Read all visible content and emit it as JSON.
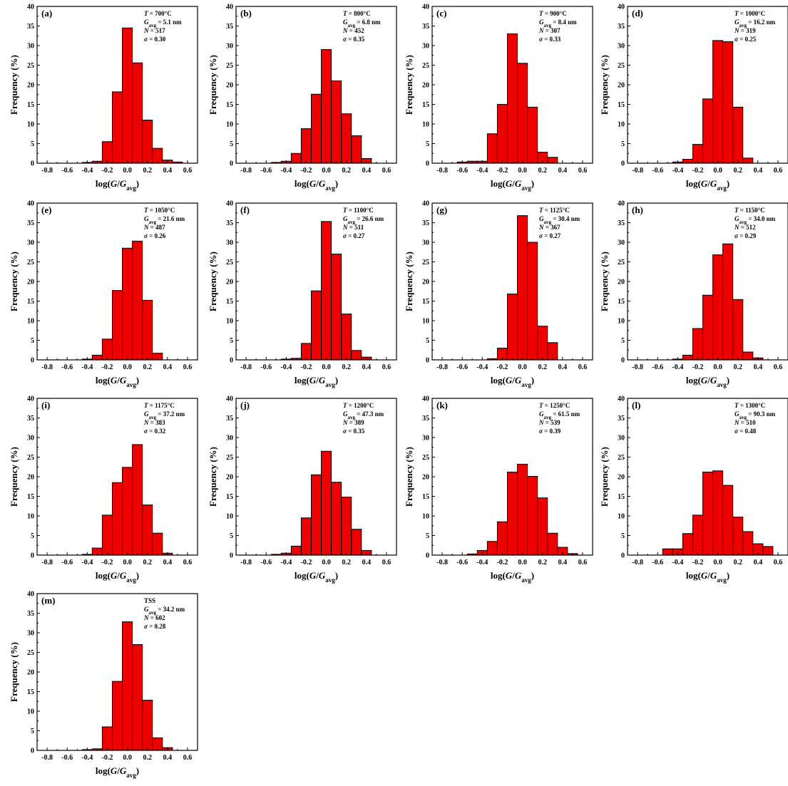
{
  "colors": {
    "bar_fill": "#ee0000",
    "bar_stroke": "#000000",
    "axis": "#000000",
    "background": "#ffffff"
  },
  "chart_data": [
    {
      "type": "bar",
      "panel": "(a)",
      "info": [
        "T = 700°C",
        "G_avg = 5.1 nm",
        "N = 517",
        "σ = 0.30"
      ],
      "xlabel": "log(G/G_avg)",
      "ylabel": "Frequency (%)",
      "xlim": [
        -0.9,
        0.7
      ],
      "ylim": [
        0,
        40
      ],
      "xticks": [
        "-0.8",
        "-0.6",
        "-0.4",
        "-0.2",
        "0.0",
        "0.2",
        "0.4",
        "0.6"
      ],
      "yticks": [
        "0",
        "5",
        "10",
        "15",
        "20",
        "25",
        "30",
        "35",
        "40"
      ],
      "bin_left": [
        -0.45,
        -0.35,
        -0.25,
        -0.15,
        -0.05,
        0.05,
        0.15,
        0.25,
        0.35,
        0.45
      ],
      "bin_width": 0.1,
      "values": [
        0.2,
        0.5,
        5.5,
        18.2,
        34.5,
        25.6,
        11.0,
        3.8,
        0.8,
        0.3
      ]
    },
    {
      "type": "bar",
      "panel": "(b)",
      "info": [
        "T = 800°C",
        "G_avg = 6.8 nm",
        "N = 452",
        "σ = 0.35"
      ],
      "xlabel": "log(G/G_avg)",
      "ylabel": "Frequency (%)",
      "xlim": [
        -0.9,
        0.7
      ],
      "ylim": [
        0,
        40
      ],
      "xticks": [
        "-0.8",
        "-0.6",
        "-0.4",
        "-0.2",
        "0.0",
        "0.2",
        "0.4",
        "0.6"
      ],
      "yticks": [
        "0",
        "5",
        "10",
        "15",
        "20",
        "25",
        "30",
        "35",
        "40"
      ],
      "bin_left": [
        -0.55,
        -0.45,
        -0.35,
        -0.25,
        -0.15,
        -0.05,
        0.05,
        0.15,
        0.25,
        0.35
      ],
      "bin_width": 0.1,
      "values": [
        0.2,
        0.5,
        2.5,
        8.8,
        17.6,
        29.0,
        21.0,
        12.6,
        7.0,
        1.2
      ]
    },
    {
      "type": "bar",
      "panel": "(c)",
      "info": [
        "T = 900°C",
        "G_avg = 8.4 nm",
        "N = 307",
        "σ = 0.33"
      ],
      "xlabel": "log(G/G_avg)",
      "ylabel": "Frequency (%)",
      "xlim": [
        -0.9,
        0.7
      ],
      "ylim": [
        0,
        40
      ],
      "xticks": [
        "-0.8",
        "-0.6",
        "-0.4",
        "-0.2",
        "0.0",
        "0.2",
        "0.4",
        "0.6"
      ],
      "yticks": [
        "0",
        "5",
        "10",
        "15",
        "20",
        "25",
        "30",
        "35",
        "40"
      ],
      "bin_left": [
        -0.65,
        -0.55,
        -0.45,
        -0.35,
        -0.25,
        -0.15,
        -0.05,
        0.05,
        0.15,
        0.25
      ],
      "bin_width": 0.1,
      "values": [
        0.3,
        0.5,
        0.5,
        7.5,
        15.0,
        33.0,
        25.5,
        14.3,
        2.8,
        1.5
      ]
    },
    {
      "type": "bar",
      "panel": "(d)",
      "info": [
        "T = 1000°C",
        "G_avg = 16.2 nm",
        "N = 319",
        "σ = 0.25"
      ],
      "xlabel": "log(G/G_avg)",
      "ylabel": "Frequency (%)",
      "xlim": [
        -0.9,
        0.7
      ],
      "ylim": [
        0,
        40
      ],
      "xticks": [
        "-0.8",
        "-0.6",
        "-0.4",
        "-0.2",
        "0.0",
        "0.2",
        "0.4",
        "0.6"
      ],
      "yticks": [
        "0",
        "5",
        "10",
        "15",
        "20",
        "25",
        "30",
        "35",
        "40"
      ],
      "bin_left": [
        -0.45,
        -0.35,
        -0.25,
        -0.15,
        -0.05,
        0.05,
        0.15,
        0.25
      ],
      "bin_width": 0.1,
      "values": [
        0.3,
        1.0,
        4.8,
        16.4,
        31.3,
        31.0,
        14.3,
        1.3
      ]
    },
    {
      "type": "bar",
      "panel": "(e)",
      "info": [
        "T = 1050°C",
        "G_avg = 21.6 nm",
        "N = 487",
        "σ = 0.26"
      ],
      "xlabel": "log(G/G_avg)",
      "ylabel": "Frequency (%)",
      "xlim": [
        -0.9,
        0.7
      ],
      "ylim": [
        0,
        40
      ],
      "xticks": [
        "-0.8",
        "-0.6",
        "-0.4",
        "-0.2",
        "0.0",
        "0.2",
        "0.4",
        "0.6"
      ],
      "yticks": [
        "0",
        "5",
        "10",
        "15",
        "20",
        "25",
        "30",
        "35",
        "40"
      ],
      "bin_left": [
        -0.45,
        -0.35,
        -0.25,
        -0.15,
        -0.05,
        0.05,
        0.15,
        0.25
      ],
      "bin_width": 0.1,
      "values": [
        0.2,
        1.2,
        5.3,
        17.7,
        28.5,
        30.3,
        15.2,
        1.7
      ]
    },
    {
      "type": "bar",
      "panel": "(f)",
      "info": [
        "T = 1100°C",
        "G_avg = 26.6 nm",
        "N = 511",
        "σ = 0.27"
      ],
      "xlabel": "log(G/G_avg)",
      "ylabel": "Frequency (%)",
      "xlim": [
        -0.9,
        0.7
      ],
      "ylim": [
        0,
        40
      ],
      "xticks": [
        "-0.8",
        "-0.6",
        "-0.4",
        "-0.2",
        "0.0",
        "0.2",
        "0.4",
        "0.6"
      ],
      "yticks": [
        "0",
        "5",
        "10",
        "15",
        "20",
        "25",
        "30",
        "35",
        "40"
      ],
      "bin_left": [
        -0.45,
        -0.35,
        -0.25,
        -0.15,
        -0.05,
        0.05,
        0.15,
        0.25,
        0.35
      ],
      "bin_width": 0.1,
      "values": [
        0.2,
        0.4,
        4.2,
        17.6,
        35.3,
        27.0,
        11.7,
        2.4,
        0.7
      ]
    },
    {
      "type": "bar",
      "panel": "(g)",
      "info": [
        "T = 1125°C",
        "G_avg = 30.4 nm",
        "N = 367",
        "σ = 0.27"
      ],
      "xlabel": "log(G/G_avg)",
      "ylabel": "Frequency (%)",
      "xlim": [
        -0.9,
        0.7
      ],
      "ylim": [
        0,
        40
      ],
      "xticks": [
        "-0.8",
        "-0.6",
        "-0.4",
        "-0.2",
        "0.0",
        "0.2",
        "0.4",
        "0.6"
      ],
      "yticks": [
        "0",
        "5",
        "10",
        "15",
        "20",
        "25",
        "30",
        "35",
        "40"
      ],
      "bin_left": [
        -0.35,
        -0.25,
        -0.15,
        -0.05,
        0.05,
        0.15,
        0.25
      ],
      "bin_width": 0.1,
      "values": [
        0.3,
        3.0,
        16.8,
        36.8,
        30.0,
        8.6,
        4.4
      ]
    },
    {
      "type": "bar",
      "panel": "(h)",
      "info": [
        "T = 1150°C",
        "G_avg = 34.0 nm",
        "N = 512",
        "σ = 0.29"
      ],
      "xlabel": "log(G/G_avg)",
      "ylabel": "Frequency (%)",
      "xlim": [
        -0.9,
        0.7
      ],
      "ylim": [
        0,
        40
      ],
      "xticks": [
        "-0.8",
        "-0.6",
        "-0.4",
        "-0.2",
        "0.0",
        "0.2",
        "0.4",
        "0.6"
      ],
      "yticks": [
        "0",
        "5",
        "10",
        "15",
        "20",
        "25",
        "30",
        "35",
        "40"
      ],
      "bin_left": [
        -0.45,
        -0.35,
        -0.25,
        -0.15,
        -0.05,
        0.05,
        0.15,
        0.25,
        0.35
      ],
      "bin_width": 0.1,
      "values": [
        0.2,
        1.2,
        8.0,
        16.5,
        26.8,
        29.6,
        15.4,
        2.0,
        0.5
      ]
    },
    {
      "type": "bar",
      "panel": "(i)",
      "info": [
        "T = 1175°C",
        "G_avg = 37.2 nm",
        "N = 383",
        "σ = 0.32"
      ],
      "xlabel": "log(G/G_avg)",
      "ylabel": "Frequency (%)",
      "xlim": [
        -0.9,
        0.7
      ],
      "ylim": [
        0,
        40
      ],
      "xticks": [
        "-0.8",
        "-0.6",
        "-0.4",
        "-0.2",
        "0.0",
        "0.2",
        "0.4",
        "0.6"
      ],
      "yticks": [
        "0",
        "5",
        "10",
        "15",
        "20",
        "25",
        "30",
        "35",
        "40"
      ],
      "bin_left": [
        -0.45,
        -0.35,
        -0.25,
        -0.15,
        -0.05,
        0.05,
        0.15,
        0.25,
        0.35
      ],
      "bin_width": 0.1,
      "values": [
        0.2,
        1.8,
        10.2,
        18.5,
        22.4,
        28.2,
        12.8,
        5.6,
        0.5
      ]
    },
    {
      "type": "bar",
      "panel": "(j)",
      "info": [
        "T = 1200°C",
        "G_avg = 47.3 nm",
        "N = 389",
        "σ = 0.35"
      ],
      "xlabel": "log(G/G_avg)",
      "ylabel": "Frequency (%)",
      "xlim": [
        -0.9,
        0.7
      ],
      "ylim": [
        0,
        40
      ],
      "xticks": [
        "-0.8",
        "-0.6",
        "-0.4",
        "-0.2",
        "0.0",
        "0.2",
        "0.4",
        "0.6"
      ],
      "yticks": [
        "0",
        "5",
        "10",
        "15",
        "20",
        "25",
        "30",
        "35",
        "40"
      ],
      "bin_left": [
        -0.55,
        -0.45,
        -0.35,
        -0.25,
        -0.15,
        -0.05,
        0.05,
        0.15,
        0.25,
        0.35
      ],
      "bin_width": 0.1,
      "values": [
        0.2,
        0.5,
        2.3,
        9.5,
        20.5,
        26.5,
        18.6,
        14.8,
        6.6,
        1.2
      ]
    },
    {
      "type": "bar",
      "panel": "(k)",
      "info": [
        "T = 1250°C",
        "G_avg = 61.5 nm",
        "N = 539",
        "σ = 0.39"
      ],
      "xlabel": "log(G/G_avg)",
      "ylabel": "Frequency (%)",
      "xlim": [
        -0.9,
        0.7
      ],
      "ylim": [
        0,
        40
      ],
      "xticks": [
        "-0.8",
        "-0.6",
        "-0.4",
        "-0.2",
        "0.0",
        "0.2",
        "0.4",
        "0.6"
      ],
      "yticks": [
        "0",
        "5",
        "10",
        "15",
        "20",
        "25",
        "30",
        "35",
        "40"
      ],
      "bin_left": [
        -0.55,
        -0.45,
        -0.35,
        -0.25,
        -0.15,
        -0.05,
        0.05,
        0.15,
        0.25,
        0.35,
        0.45
      ],
      "bin_width": 0.1,
      "values": [
        0.3,
        1.2,
        3.5,
        8.5,
        21.2,
        23.2,
        20.1,
        14.6,
        5.6,
        2.0,
        0.4
      ]
    },
    {
      "type": "bar",
      "panel": "(l)",
      "info": [
        "T = 1300°C",
        "G_avg = 90.3 nm",
        "N = 510",
        "σ = 0.48"
      ],
      "xlabel": "log(G/G_avg)",
      "ylabel": "Frequency (%)",
      "xlim": [
        -0.9,
        0.7
      ],
      "ylim": [
        0,
        40
      ],
      "xticks": [
        "-0.8",
        "-0.6",
        "-0.4",
        "-0.2",
        "0.0",
        "0.2",
        "0.4",
        "0.6"
      ],
      "yticks": [
        "0",
        "5",
        "10",
        "15",
        "20",
        "25",
        "30",
        "35",
        "40"
      ],
      "bin_left": [
        -0.55,
        -0.45,
        -0.35,
        -0.25,
        -0.15,
        -0.05,
        0.05,
        0.15,
        0.25,
        0.35,
        0.45
      ],
      "bin_width": 0.1,
      "values": [
        1.6,
        1.6,
        5.5,
        10.2,
        21.2,
        21.5,
        17.8,
        9.7,
        6.0,
        2.9,
        2.2
      ]
    },
    {
      "type": "bar",
      "panel": "(m)",
      "info": [
        "TSS",
        "G_avg = 34.2 nm",
        "N = 602",
        "σ = 0.28"
      ],
      "xlabel": "log(G/G_avg)",
      "ylabel": "Frequency (%)",
      "xlim": [
        -0.9,
        0.7
      ],
      "ylim": [
        0,
        40
      ],
      "xticks": [
        "-0.8",
        "-0.6",
        "-0.4",
        "-0.2",
        "0.0",
        "0.2",
        "0.4",
        "0.6"
      ],
      "yticks": [
        "0",
        "5",
        "10",
        "15",
        "20",
        "25",
        "30",
        "35",
        "40"
      ],
      "bin_left": [
        -0.45,
        -0.35,
        -0.25,
        -0.15,
        -0.05,
        0.05,
        0.15,
        0.25,
        0.35
      ],
      "bin_width": 0.1,
      "values": [
        0.2,
        0.4,
        6.0,
        17.6,
        32.8,
        27.0,
        12.8,
        3.2,
        0.7
      ]
    }
  ]
}
